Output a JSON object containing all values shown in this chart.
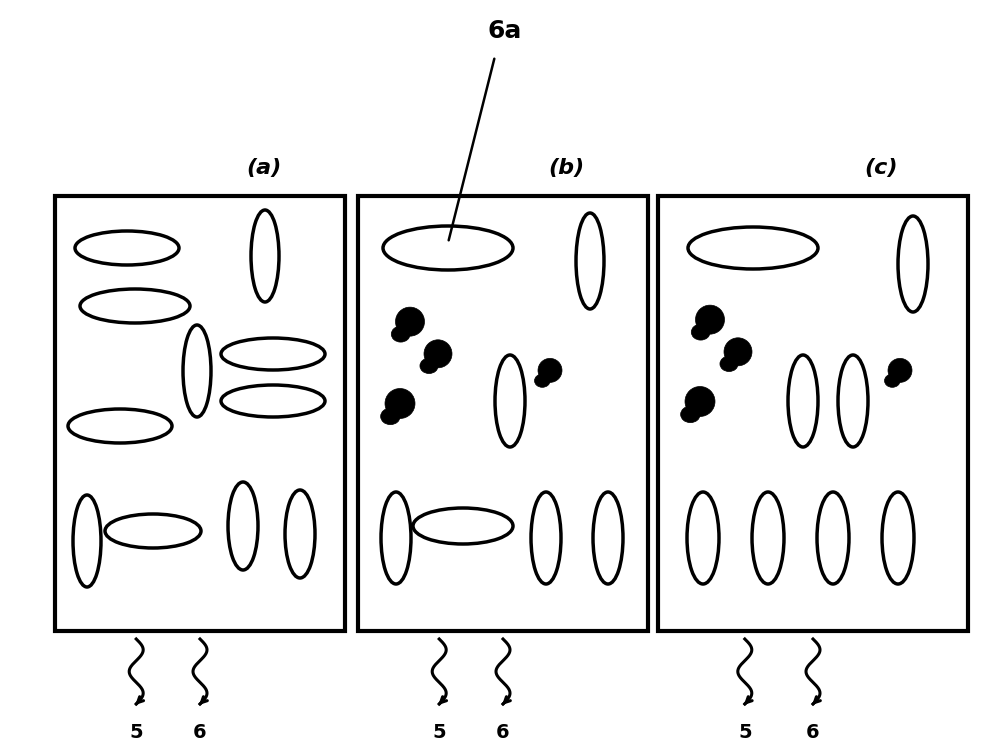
{
  "fig_width": 10.0,
  "fig_height": 7.41,
  "bg_color": "#ffffff",
  "panel_labels": [
    "(a)",
    "(b)",
    "(c)"
  ],
  "panel_label_6a": "6a"
}
